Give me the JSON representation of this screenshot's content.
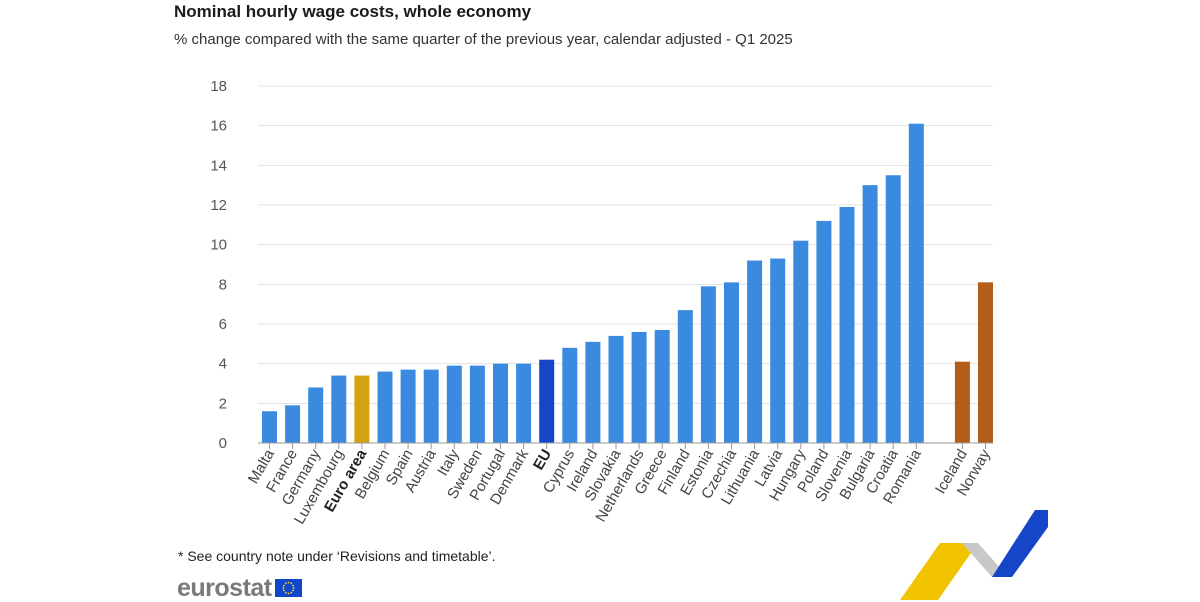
{
  "chart_data": {
    "type": "bar",
    "title": "Nominal hourly wage costs, whole economy",
    "subtitle": "% change compared with the same quarter of the previous year, calendar adjusted - Q1 2025",
    "xlabel": "",
    "ylabel": "",
    "ylim": [
      0,
      18
    ],
    "yticks": [
      "0",
      "2",
      "4",
      "6",
      "8",
      "10",
      "12",
      "14",
      "16",
      "18"
    ],
    "grid": true,
    "categories": [
      "Malta",
      "France",
      "Germany",
      "Luxembourg",
      "Euro area",
      "Belgium",
      "Spain",
      "Austria",
      "Italy",
      "Sweden",
      "Portugal",
      "Denmark",
      "EU",
      "Cyprus",
      "Ireland",
      "Slovakia",
      "Netherlands",
      "Greece",
      "Finland",
      "Estonia",
      "Czechia",
      "Lithuania",
      "Latvia",
      "Hungary",
      "Poland",
      "Slovenia",
      "Bulgaria",
      "Croatia",
      "Romania",
      "Iceland",
      "Norway"
    ],
    "values": [
      1.6,
      1.9,
      2.8,
      3.4,
      3.4,
      3.6,
      3.7,
      3.7,
      3.9,
      3.9,
      4.0,
      4.0,
      4.2,
      4.8,
      5.1,
      5.4,
      5.6,
      5.7,
      6.7,
      7.9,
      8.1,
      9.2,
      9.3,
      10.2,
      11.2,
      11.9,
      13.0,
      13.5,
      16.1,
      4.1,
      8.1
    ],
    "groups": [
      "member",
      "member",
      "member",
      "member",
      "euro_area",
      "member",
      "member",
      "member",
      "member",
      "member",
      "member",
      "member",
      "eu",
      "member",
      "member",
      "member",
      "member",
      "member",
      "member",
      "member",
      "member",
      "member",
      "member",
      "member",
      "member",
      "member",
      "member",
      "member",
      "member",
      "efta",
      "efta"
    ],
    "bold_categories": [
      "Euro area",
      "EU"
    ],
    "colors": {
      "member": "#3a8be0",
      "euro_area": "#d4a20e",
      "eu": "#1646c8",
      "efta": "#b35d18",
      "grid": "#e3e3e3",
      "axis": "#9a9a9a"
    }
  },
  "footnote": "* See country note under ‘Revisions and timetable’.",
  "logo": {
    "text": "eurostat",
    "flag_icon": "eu-flag-icon"
  }
}
